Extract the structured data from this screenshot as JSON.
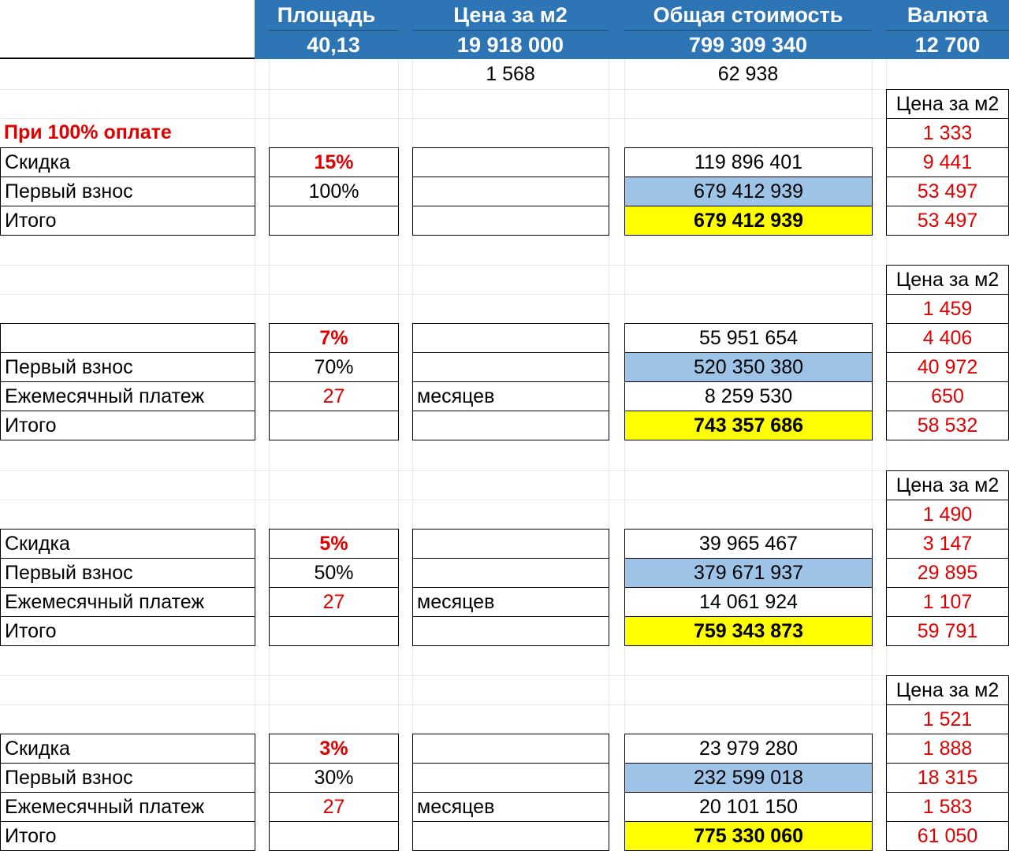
{
  "header": {
    "area": {
      "label": "Площадь",
      "value": "40,13"
    },
    "price_m2": {
      "label": "Цена за м2",
      "value": "19 918 000"
    },
    "total": {
      "label": "Общая стоимость",
      "value": "799 309 340"
    },
    "currency": {
      "label": "Валюта",
      "value": "12 700"
    }
  },
  "conversions": {
    "price_m2": "1 568",
    "total": "62 938"
  },
  "full_payment_title": "При 100% оплате",
  "price_m2_label": "Цена за м2",
  "months_label": "месяцев",
  "blocks": [
    {
      "price_m2": "1 333",
      "discount": {
        "label": "Скидка",
        "percent": "15%",
        "amount": "119 896 401",
        "currency": "9 441"
      },
      "first_payment": {
        "label": "Первый взнос",
        "percent": "100%",
        "amount": "679 412 939",
        "currency": "53 497"
      },
      "total": {
        "label": "Итого",
        "amount": "679 412 939",
        "currency": "53 497"
      }
    },
    {
      "price_m2": "1 459",
      "discount": {
        "label": "",
        "percent": "7%",
        "amount": "55 951 654",
        "currency": "4 406"
      },
      "first_payment": {
        "label": "Первый взнос",
        "percent": "70%",
        "amount": "520 350 380",
        "currency": "40 972"
      },
      "monthly": {
        "label": "Ежемесячный платеж",
        "months": "27",
        "amount": "8 259 530",
        "currency": "650"
      },
      "total": {
        "label": "Итого",
        "amount": "743 357 686",
        "currency": "58 532"
      }
    },
    {
      "price_m2": "1 490",
      "discount": {
        "label": "Скидка",
        "percent": "5%",
        "amount": "39 965 467",
        "currency": "3 147"
      },
      "first_payment": {
        "label": "Первый взнос",
        "percent": "50%",
        "amount": "379 671 937",
        "currency": "29 895"
      },
      "monthly": {
        "label": "Ежемесячный платеж",
        "months": "27",
        "amount": "14 061 924",
        "currency": "1 107"
      },
      "total": {
        "label": "Итого",
        "amount": "759 343 873",
        "currency": "59 791"
      }
    },
    {
      "price_m2": "1 521",
      "discount": {
        "label": "Скидка",
        "percent": "3%",
        "amount": "23 979 280",
        "currency": "1 888"
      },
      "first_payment": {
        "label": "Первый взнос",
        "percent": "30%",
        "amount": "232 599 018",
        "currency": "18 315"
      },
      "monthly": {
        "label": "Ежемесячный платеж",
        "months": "27",
        "amount": "20 101 150",
        "currency": "1 583"
      },
      "total": {
        "label": "Итого",
        "amount": "775 330 060",
        "currency": "61 050"
      }
    }
  ]
}
